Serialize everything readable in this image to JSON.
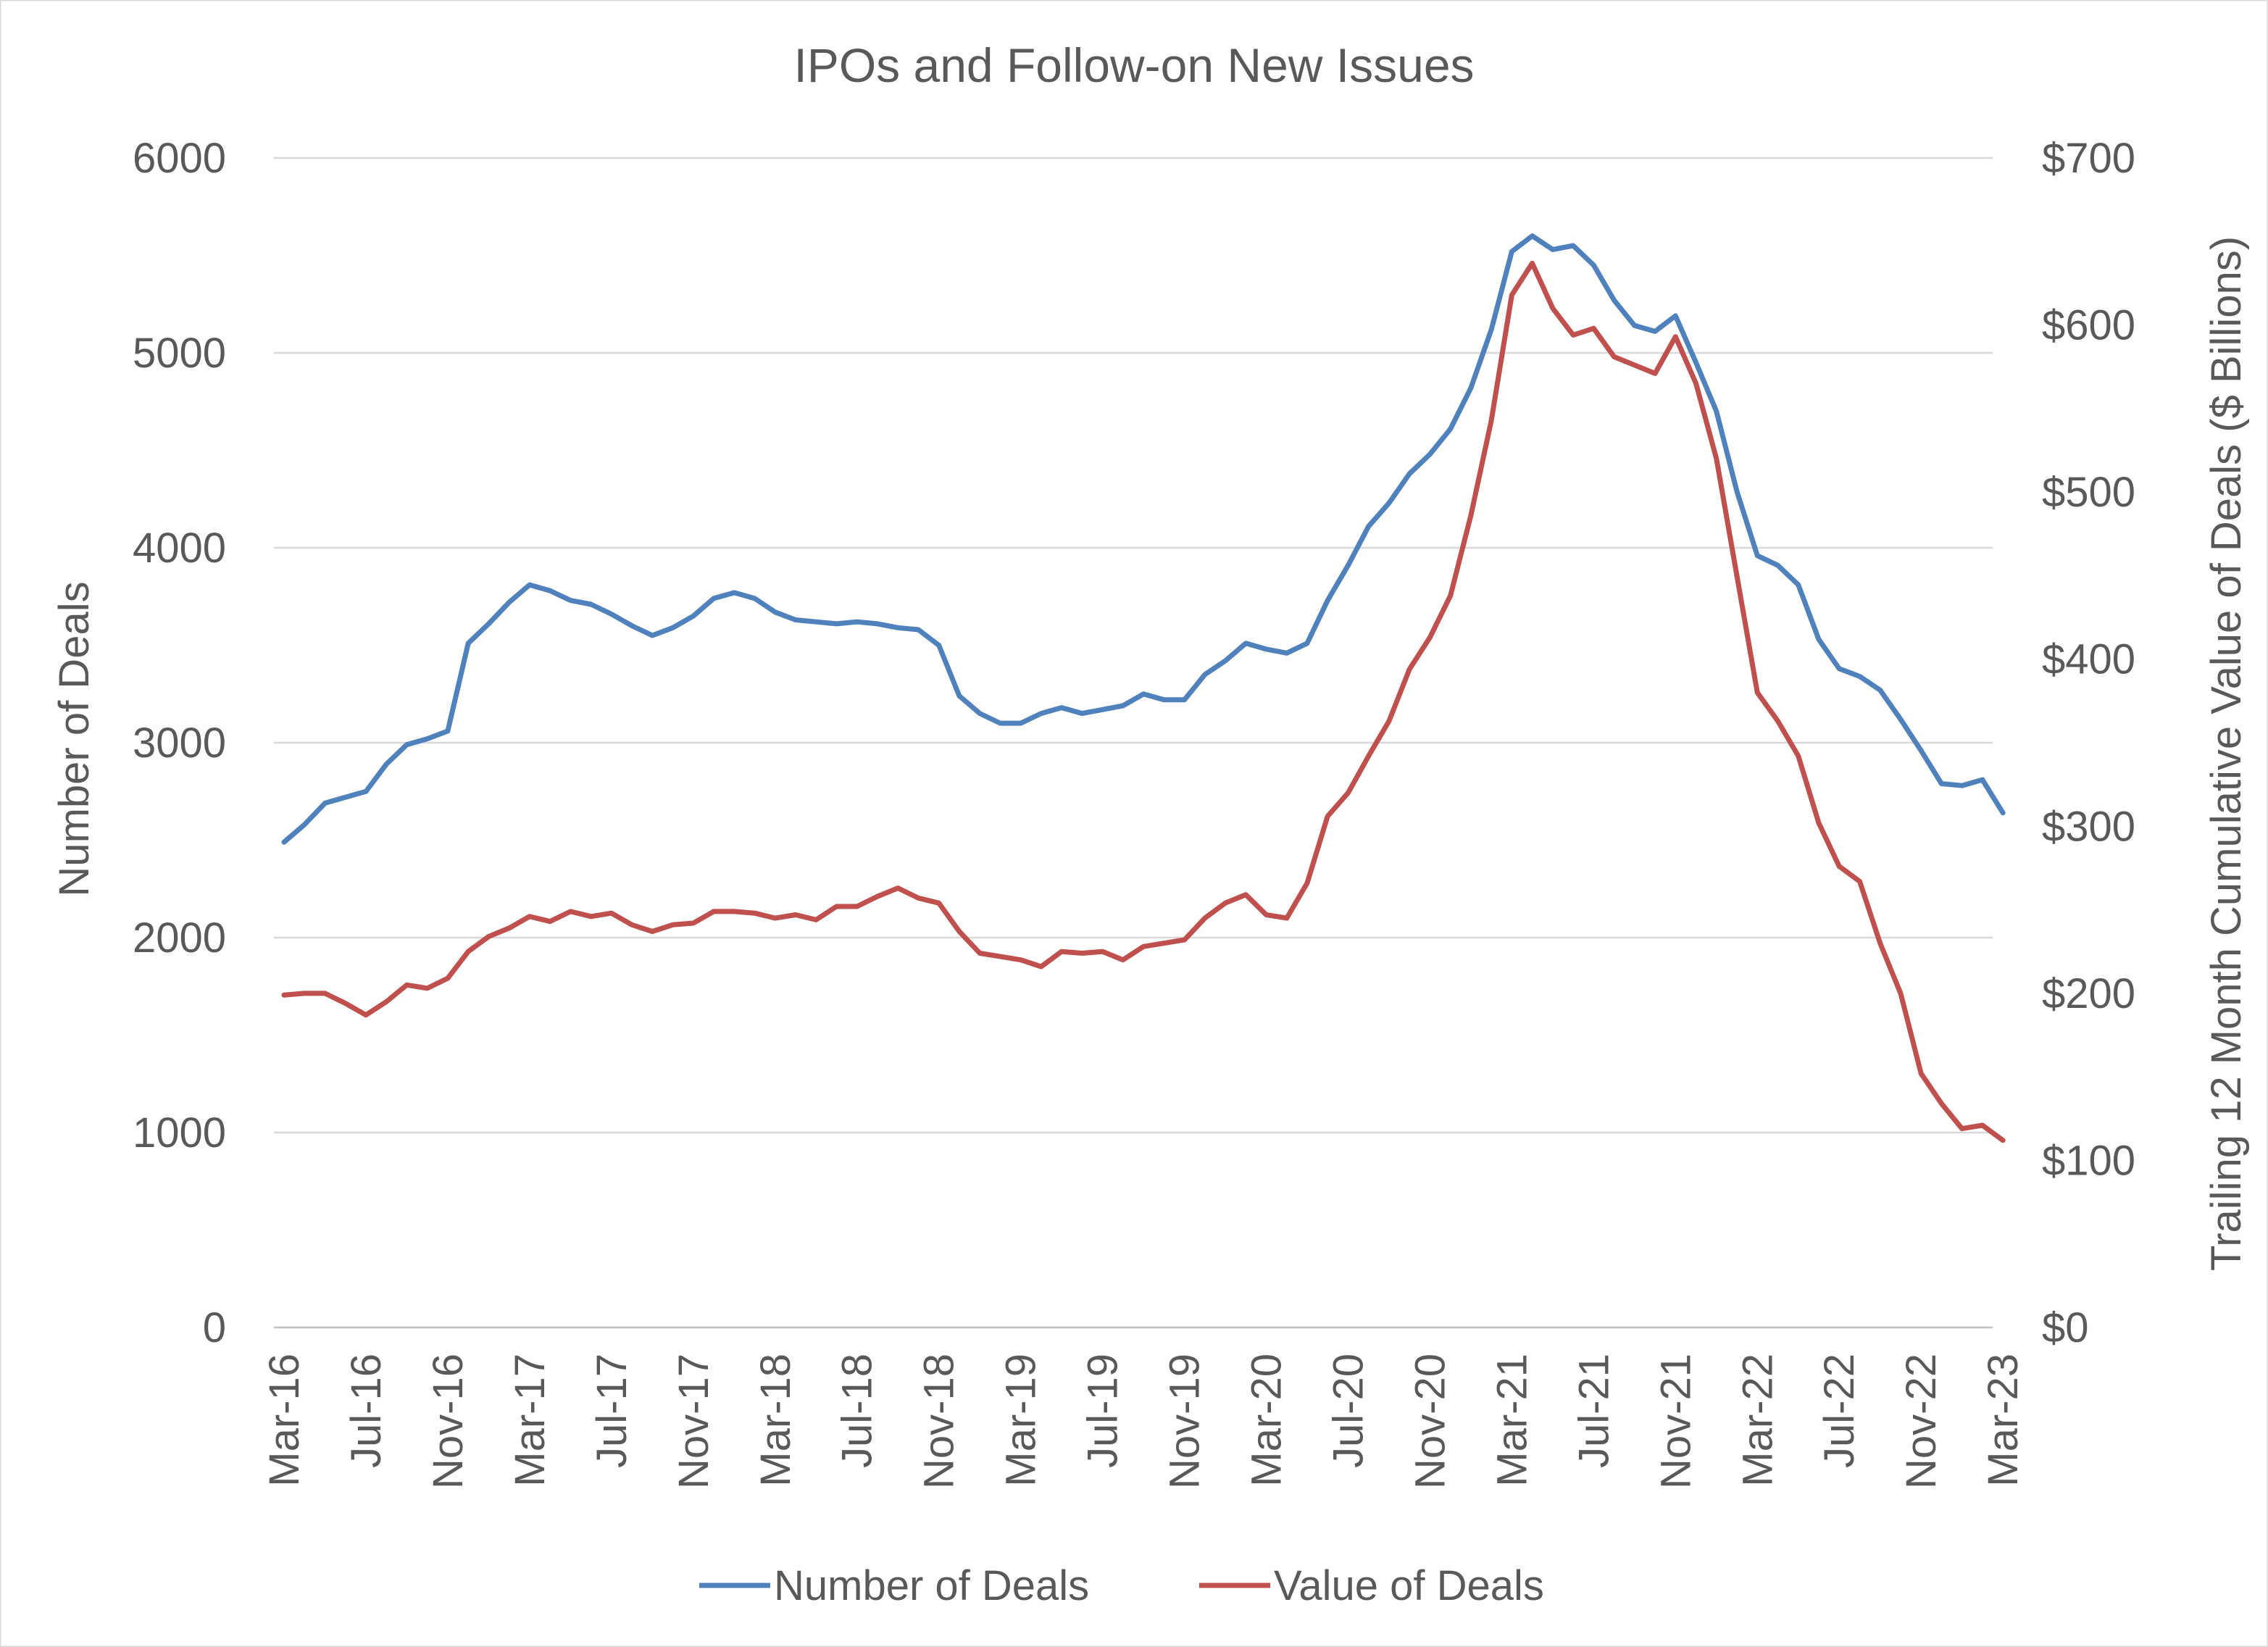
{
  "chart_data": {
    "type": "line",
    "title": "IPOs and Follow-on New Issues",
    "y_axis_left": {
      "label": "Number of Deals",
      "range": [
        0,
        6000
      ],
      "ticks": [
        "0",
        "1000",
        "2000",
        "3000",
        "4000",
        "5000",
        "6000"
      ]
    },
    "y_axis_right": {
      "label": "Trailing 12 Month Cumulative Value of Deals ($ Billions)",
      "range": [
        0,
        700
      ],
      "ticks": [
        "$0",
        "$100",
        "$200",
        "$300",
        "$400",
        "$500",
        "$600",
        "$700"
      ]
    },
    "x_axis": {
      "label": "",
      "tick_labels": [
        "Mar-16",
        "Jul-16",
        "Nov-16",
        "Mar-17",
        "Jul-17",
        "Nov-17",
        "Mar-18",
        "Jul-18",
        "Nov-18",
        "Mar-19",
        "Jul-19",
        "Nov-19",
        "Mar-20",
        "Jul-20",
        "Nov-20",
        "Mar-21",
        "Jul-21",
        "Nov-21",
        "Mar-22",
        "Jul-22",
        "Nov-22",
        "Mar-23"
      ]
    },
    "gridlines": true,
    "legend": {
      "position": "bottom"
    },
    "series": [
      {
        "name": "Number of Deals",
        "axis": "left",
        "color": "#4f81bd",
        "values": [
          2490,
          2580,
          2690,
          2720,
          2750,
          2890,
          2990,
          3020,
          3060,
          3510,
          3610,
          3720,
          3810,
          3780,
          3730,
          3710,
          3660,
          3600,
          3550,
          3590,
          3650,
          3740,
          3770,
          3740,
          3670,
          3630,
          3620,
          3610,
          3620,
          3610,
          3590,
          3580,
          3500,
          3240,
          3150,
          3100,
          3100,
          3150,
          3180,
          3150,
          3170,
          3190,
          3250,
          3220,
          3220,
          3350,
          3420,
          3510,
          3480,
          3460,
          3510,
          3730,
          3910,
          4110,
          4230,
          4380,
          4480,
          4610,
          4820,
          5120,
          5520,
          5600,
          5530,
          5550,
          5450,
          5270,
          5140,
          5110,
          5190,
          4950,
          4700,
          4290,
          3960,
          3910,
          3810,
          3530,
          3380,
          3340,
          3270,
          3120,
          2960,
          2790,
          2780,
          2810,
          2640
        ]
      },
      {
        "name": "Value of Deals",
        "axis": "right",
        "color": "#c0504d",
        "values": [
          199,
          200,
          200,
          194,
          187,
          195,
          205,
          203,
          209,
          225,
          234,
          239,
          246,
          243,
          249,
          246,
          248,
          241,
          237,
          241,
          242,
          249,
          249,
          248,
          245,
          247,
          244,
          252,
          252,
          258,
          263,
          257,
          254,
          237,
          224,
          222,
          220,
          216,
          225,
          224,
          225,
          220,
          228,
          230,
          232,
          245,
          254,
          259,
          247,
          245,
          266,
          306,
          320,
          342,
          363,
          394,
          413,
          438,
          486,
          543,
          618,
          637,
          610,
          594,
          598,
          581,
          576,
          571,
          593,
          565,
          520,
          450,
          380,
          363,
          342,
          302,
          276,
          267,
          230,
          200,
          152,
          134,
          119,
          121,
          112
        ]
      }
    ]
  }
}
